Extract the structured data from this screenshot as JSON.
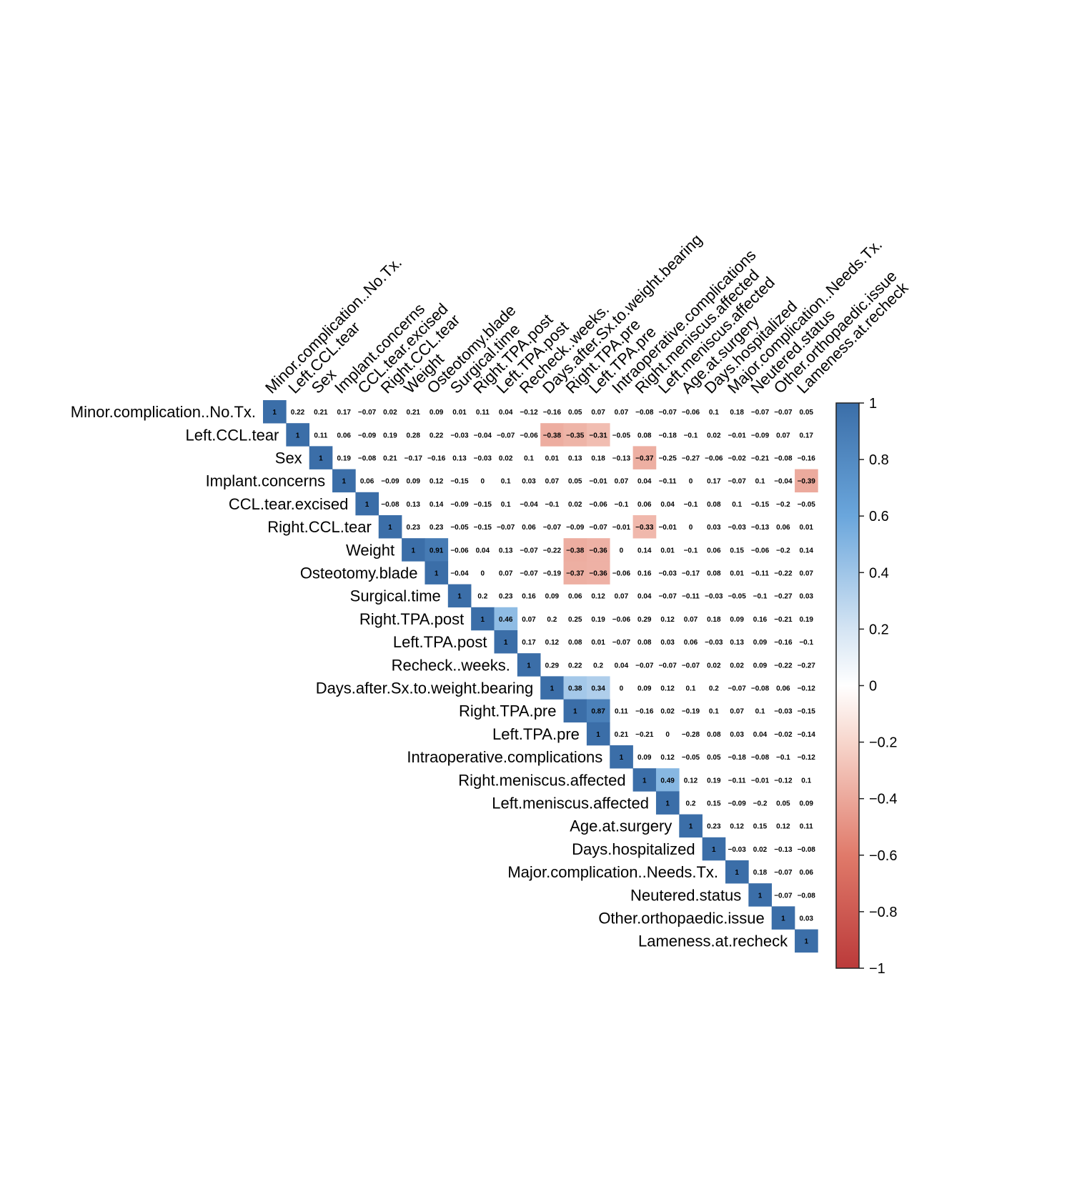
{
  "chart_data": {
    "type": "heatmap",
    "subtype": "upper-triangular correlation matrix",
    "labels": [
      "Minor.complication..No.Tx.",
      "Left.CCL.tear",
      "Sex",
      "Implant.concerns",
      "CCL.tear.excised",
      "Right.CCL.tear",
      "Weight",
      "Osteotomy.blade",
      "Surgical.time",
      "Right.TPA.post",
      "Left.TPA.post",
      "Recheck..weeks.",
      "Days.after.Sx.to.weight.bearing",
      "Right.TPA.pre",
      "Left.TPA.pre",
      "Intraoperative.complications",
      "Right.meniscus.affected",
      "Left.meniscus.affected",
      "Age.at.surgery",
      "Days.hospitalized",
      "Major.complication..Needs.Tx.",
      "Neutered.status",
      "Other.orthopaedic.issue",
      "Lameness.at.recheck"
    ],
    "rows": [
      [
        1,
        0.22,
        0.21,
        0.17,
        -0.07,
        0.02,
        0.21,
        0.09,
        0.01,
        0.11,
        0.04,
        -0.12,
        -0.16,
        0.05,
        0.07,
        0.07,
        -0.08,
        -0.07,
        -0.06,
        0.1,
        0.18,
        -0.07,
        -0.07,
        0.05
      ],
      [
        1,
        0.11,
        0.06,
        -0.09,
        0.19,
        0.28,
        0.22,
        -0.03,
        -0.04,
        -0.07,
        -0.06,
        -0.38,
        -0.35,
        -0.31,
        -0.05,
        0.08,
        -0.18,
        -0.1,
        0.02,
        -0.01,
        -0.09,
        0.07,
        0.17
      ],
      [
        1,
        0.19,
        -0.08,
        0.21,
        -0.17,
        -0.16,
        0.13,
        -0.03,
        0.02,
        0.1,
        0.01,
        0.13,
        0.18,
        -0.13,
        -0.37,
        -0.25,
        -0.27,
        -0.06,
        -0.02,
        -0.21,
        -0.08,
        -0.16
      ],
      [
        1,
        0.06,
        -0.09,
        0.09,
        0.12,
        -0.15,
        0,
        0.1,
        0.03,
        0.07,
        0.05,
        -0.01,
        0.07,
        0.04,
        -0.11,
        0,
        0.17,
        -0.07,
        0.1,
        -0.04,
        -0.39
      ],
      [
        1,
        -0.08,
        0.13,
        0.14,
        -0.09,
        -0.15,
        0.1,
        -0.04,
        -0.1,
        0.02,
        -0.06,
        -0.1,
        0.06,
        0.04,
        -0.1,
        0.08,
        0.1,
        -0.15,
        -0.2,
        -0.05
      ],
      [
        1,
        0.23,
        0.23,
        -0.05,
        -0.15,
        -0.07,
        0.06,
        -0.07,
        -0.09,
        -0.07,
        -0.01,
        -0.33,
        -0.01,
        0,
        0.03,
        -0.03,
        -0.13,
        0.06,
        0.01
      ],
      [
        1,
        0.91,
        -0.06,
        0.04,
        0.13,
        -0.07,
        -0.22,
        -0.38,
        -0.36,
        0,
        0.14,
        0.01,
        -0.1,
        0.06,
        0.15,
        -0.06,
        -0.2,
        0.14
      ],
      [
        1,
        -0.04,
        0,
        0.07,
        -0.07,
        -0.19,
        -0.37,
        -0.36,
        -0.06,
        0.16,
        -0.03,
        -0.17,
        0.08,
        0.01,
        -0.11,
        -0.22,
        0.07
      ],
      [
        1,
        0.2,
        0.23,
        0.16,
        0.09,
        0.06,
        0.12,
        0.07,
        0.04,
        -0.07,
        -0.11,
        -0.03,
        -0.05,
        -0.1,
        -0.27,
        0.03
      ],
      [
        1,
        0.46,
        0.07,
        0.2,
        0.25,
        0.19,
        -0.06,
        0.29,
        0.12,
        0.07,
        0.18,
        0.09,
        0.16,
        -0.21,
        0.19
      ],
      [
        1,
        0.17,
        0.12,
        0.08,
        0.01,
        -0.07,
        0.08,
        0.03,
        0.06,
        -0.03,
        0.13,
        0.09,
        -0.16,
        -0.1
      ],
      [
        1,
        0.29,
        0.22,
        0.2,
        0.04,
        -0.07,
        -0.07,
        -0.07,
        0.02,
        0.02,
        0.09,
        -0.22,
        -0.27
      ],
      [
        1,
        0.38,
        0.34,
        0,
        0.09,
        0.12,
        0.1,
        0.2,
        -0.07,
        -0.08,
        0.06,
        -0.12
      ],
      [
        1,
        0.87,
        0.11,
        -0.16,
        0.02,
        -0.19,
        0.1,
        0.07,
        0.1,
        -0.03,
        -0.15
      ],
      [
        1,
        0.21,
        -0.21,
        0,
        -0.28,
        0.08,
        0.03,
        0.04,
        -0.02,
        -0.14
      ],
      [
        1,
        0.09,
        0.12,
        -0.05,
        0.05,
        -0.18,
        -0.08,
        -0.1,
        -0.12
      ],
      [
        1,
        0.49,
        0.12,
        0.19,
        -0.11,
        -0.01,
        -0.12,
        0.1
      ],
      [
        1,
        0.2,
        0.15,
        -0.09,
        -0.2,
        0.05,
        0.09
      ],
      [
        1,
        0.23,
        0.12,
        0.15,
        0.12,
        0.11
      ],
      [
        1,
        -0.03,
        0.02,
        -0.13,
        -0.08
      ],
      [
        1,
        0.18,
        -0.07,
        0.06
      ],
      [
        1,
        -0.07,
        -0.08
      ],
      [
        1,
        0.03
      ],
      [
        1
      ]
    ],
    "colorbar": {
      "range": [
        -1,
        1
      ],
      "ticks": [
        "1",
        "0.8",
        "0.6",
        "0.4",
        "0.2",
        "0",
        "−0.2",
        "−0.4",
        "−0.6",
        "−0.8",
        "−1"
      ]
    },
    "colors": {
      "positive": "#3b6ea8",
      "negative": "#c94b4b",
      "neutral": "#ffffff",
      "stops": [
        [
          -1,
          "#bb3a3a"
        ],
        [
          -0.6,
          "#e07a6a"
        ],
        [
          -0.2,
          "#f7d6cc"
        ],
        [
          0,
          "#ffffff"
        ],
        [
          0.2,
          "#d4e4f3"
        ],
        [
          0.6,
          "#6aa6dc"
        ],
        [
          1,
          "#3b6ea8"
        ]
      ]
    },
    "display": "cells shaded only where |r| >= 0.3",
    "title": "",
    "grid": false
  }
}
